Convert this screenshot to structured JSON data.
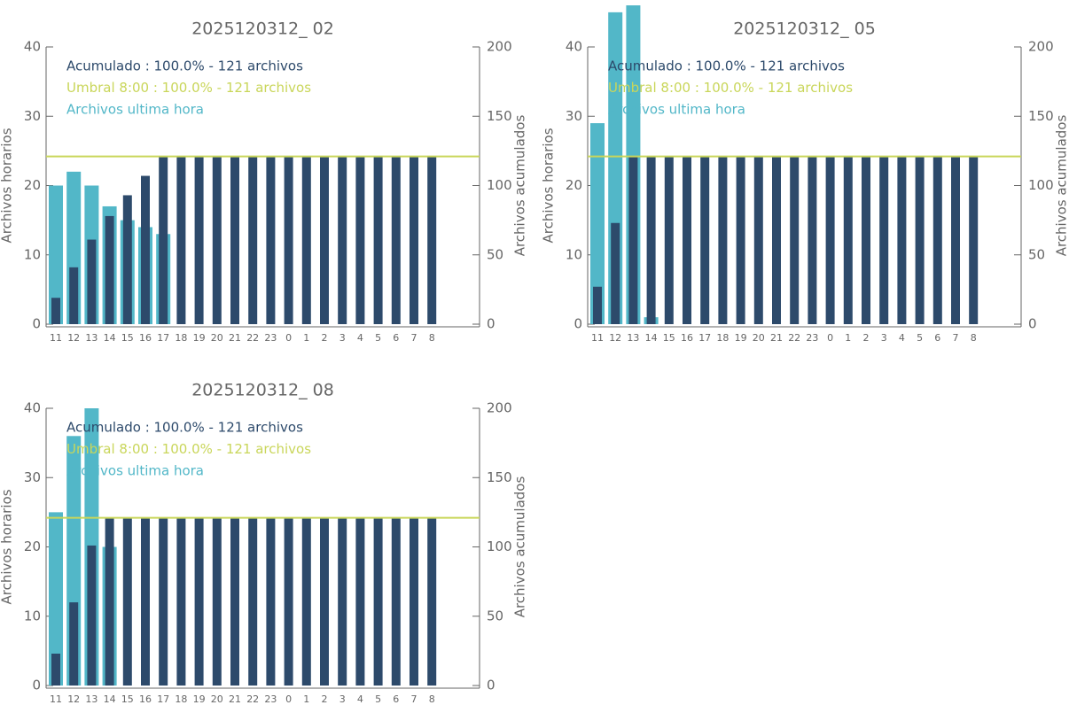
{
  "chart_data": [
    {
      "type": "bar",
      "title": "2025120312_ 02",
      "ylabel": "Archivos horarios",
      "y2label": "Archivos acumulados",
      "categories": [
        "11",
        "12",
        "13",
        "14",
        "15",
        "16",
        "17",
        "18",
        "19",
        "20",
        "21",
        "22",
        "23",
        "0",
        "1",
        "2",
        "3",
        "4",
        "5",
        "6",
        "7",
        "8"
      ],
      "series": [
        {
          "name": "Archivos ultima hora",
          "color": "#52b7c8",
          "values": [
            20,
            22,
            20,
            17,
            15,
            14,
            13,
            0,
            0,
            0,
            0,
            0,
            0,
            0,
            0,
            0,
            0,
            0,
            0,
            0,
            0,
            0
          ]
        },
        {
          "name": "Acumulado : 100.0% - 121 archivos",
          "color": "#2d4a6b",
          "axis": "y2",
          "values": [
            19,
            41,
            61,
            78,
            93,
            107,
            121,
            121,
            121,
            121,
            121,
            121,
            121,
            121,
            121,
            121,
            121,
            121,
            121,
            121,
            121,
            121
          ]
        }
      ],
      "threshold": {
        "name": "Umbral 8:00 : 100.0% - 121 archivos",
        "value": 121,
        "color": "#c9d65a",
        "axis": "y2"
      },
      "ylim": [
        0,
        40
      ],
      "yticks": [
        0,
        10,
        20,
        30,
        40
      ],
      "y2lim": [
        0,
        200
      ],
      "y2ticks": [
        0,
        50,
        100,
        150,
        200
      ]
    },
    {
      "type": "bar",
      "title": "2025120312_ 05",
      "ylabel": "Archivos horarios",
      "y2label": "Archivos acumulados",
      "categories": [
        "11",
        "12",
        "13",
        "14",
        "15",
        "16",
        "17",
        "18",
        "19",
        "20",
        "21",
        "22",
        "23",
        "0",
        "1",
        "2",
        "3",
        "4",
        "5",
        "6",
        "7",
        "8"
      ],
      "series": [
        {
          "name": "Archivos ultima hora",
          "color": "#52b7c8",
          "values": [
            29,
            45,
            46,
            1,
            0,
            0,
            0,
            0,
            0,
            0,
            0,
            0,
            0,
            0,
            0,
            0,
            0,
            0,
            0,
            0,
            0,
            0
          ]
        },
        {
          "name": "Acumulado : 100.0% - 121 archivos",
          "color": "#2d4a6b",
          "axis": "y2",
          "values": [
            27,
            73,
            121,
            121,
            121,
            121,
            121,
            121,
            121,
            121,
            121,
            121,
            121,
            121,
            121,
            121,
            121,
            121,
            121,
            121,
            121,
            121
          ]
        }
      ],
      "threshold": {
        "name": "Umbral 8:00 : 100.0% - 121 archivos",
        "value": 121,
        "color": "#c9d65a",
        "axis": "y2"
      },
      "ylim": [
        0,
        40
      ],
      "yticks": [
        0,
        10,
        20,
        30,
        40
      ],
      "y2lim": [
        0,
        200
      ],
      "y2ticks": [
        0,
        50,
        100,
        150,
        200
      ]
    },
    {
      "type": "bar",
      "title": "2025120312_ 08",
      "ylabel": "Archivos horarios",
      "y2label": "Archivos acumulados",
      "categories": [
        "11",
        "12",
        "13",
        "14",
        "15",
        "16",
        "17",
        "18",
        "19",
        "20",
        "21",
        "22",
        "23",
        "0",
        "1",
        "2",
        "3",
        "4",
        "5",
        "6",
        "7",
        "8"
      ],
      "series": [
        {
          "name": "Archivos ultima hora",
          "color": "#52b7c8",
          "values": [
            25,
            36,
            40,
            20,
            0,
            0,
            0,
            0,
            0,
            0,
            0,
            0,
            0,
            0,
            0,
            0,
            0,
            0,
            0,
            0,
            0,
            0
          ]
        },
        {
          "name": "Acumulado : 100.0% - 121 archivos",
          "color": "#2d4a6b",
          "axis": "y2",
          "values": [
            23,
            60,
            101,
            121,
            121,
            121,
            121,
            121,
            121,
            121,
            121,
            121,
            121,
            121,
            121,
            121,
            121,
            121,
            121,
            121,
            121,
            121
          ]
        }
      ],
      "threshold": {
        "name": "Umbral 8:00 : 100.0% - 121 archivos",
        "value": 121,
        "color": "#c9d65a",
        "axis": "y2"
      },
      "ylim": [
        0,
        40
      ],
      "yticks": [
        0,
        10,
        20,
        30,
        40
      ],
      "y2lim": [
        0,
        200
      ],
      "y2ticks": [
        0,
        50,
        100,
        150,
        200
      ]
    }
  ]
}
